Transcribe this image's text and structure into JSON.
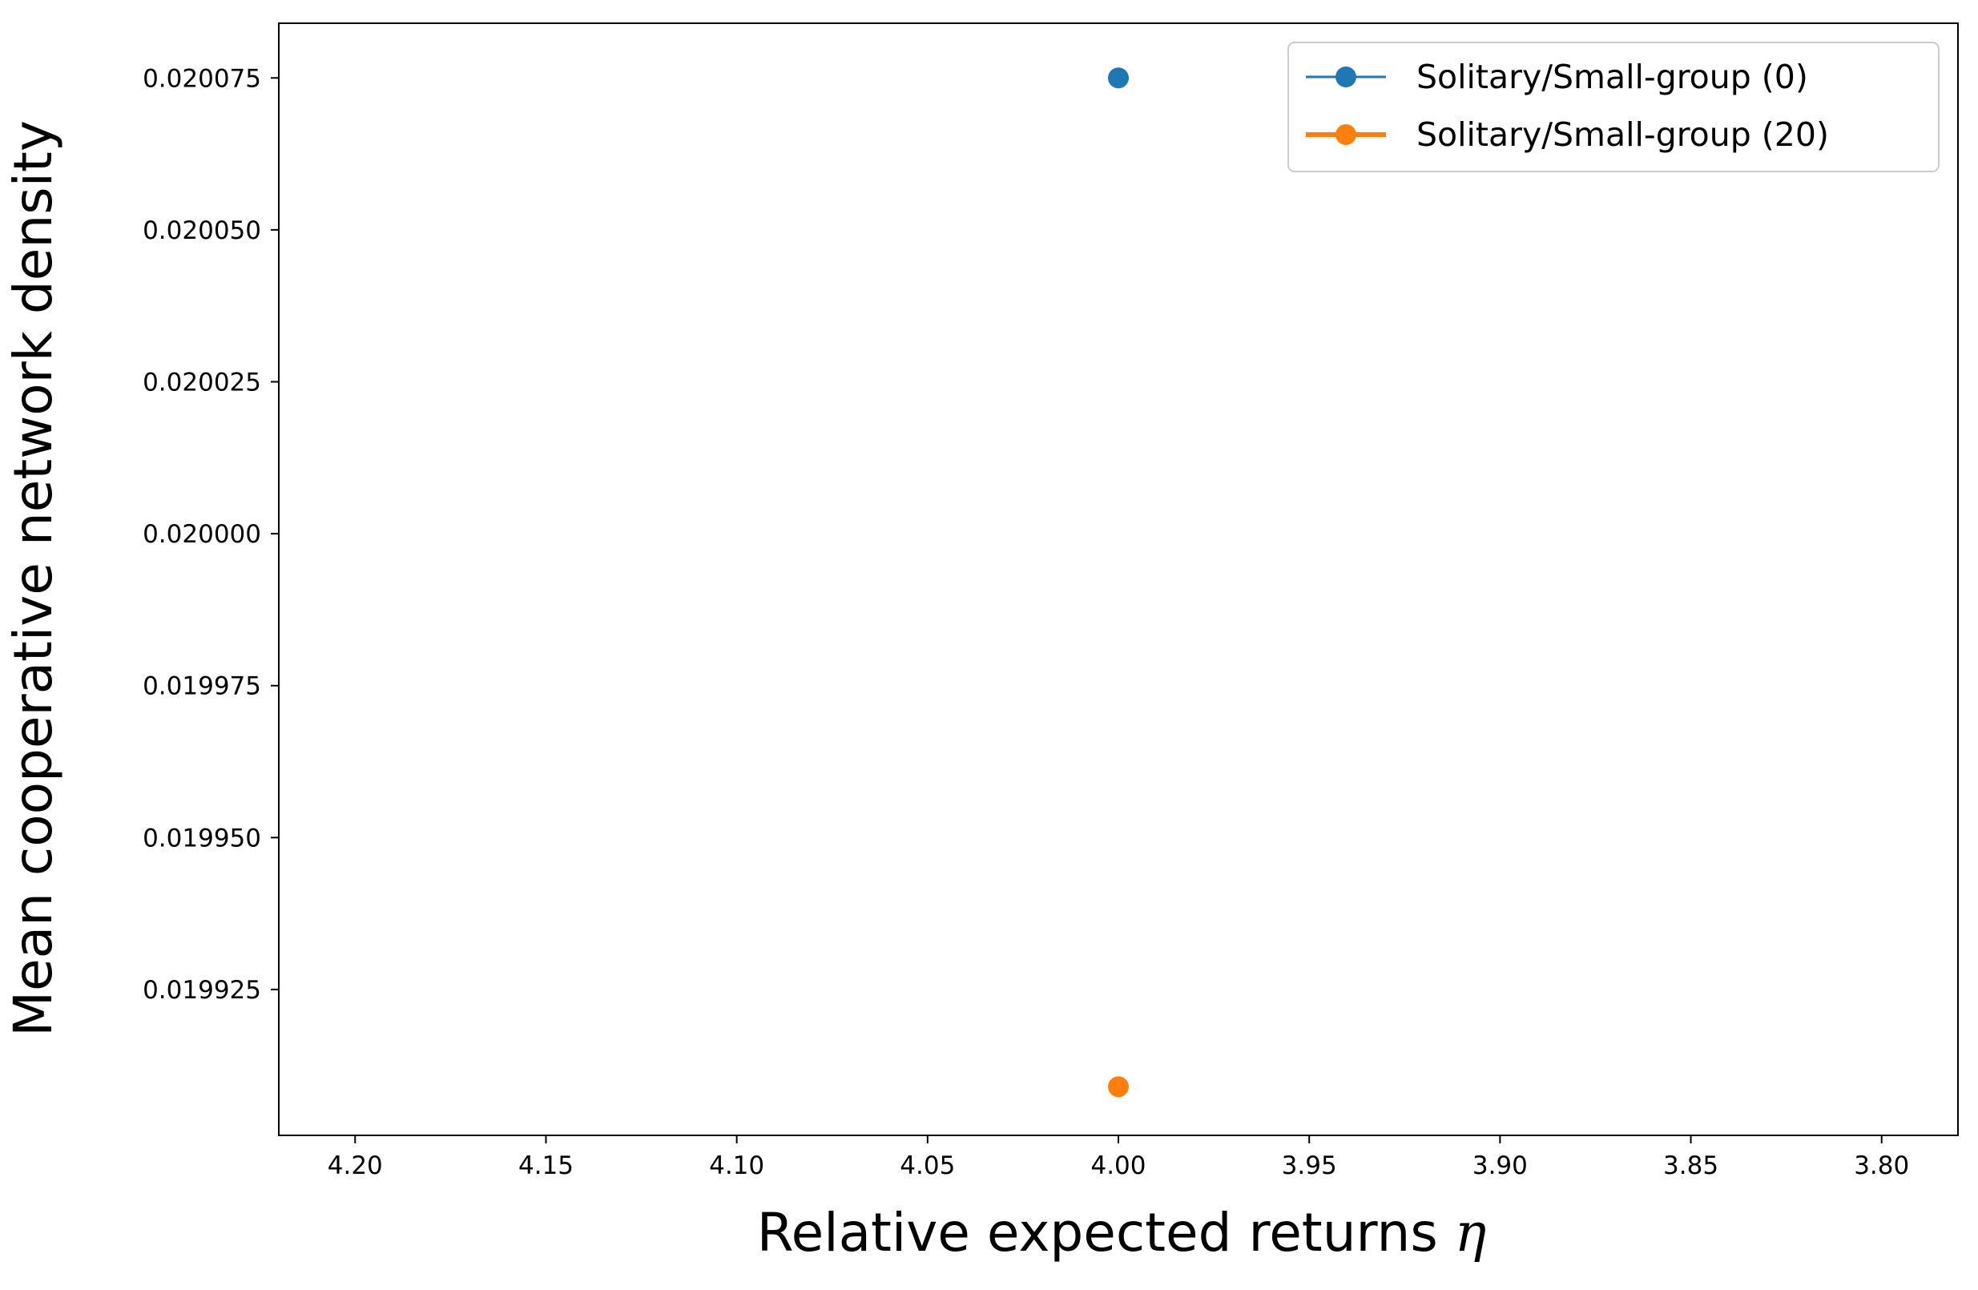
{
  "chart_data": {
    "type": "scatter",
    "xlabel": "Relative expected returns",
    "xlabel_symbol": "η",
    "ylabel": "Mean cooperative network density",
    "x_inverted": true,
    "xlim": [
      4.22,
      3.78
    ],
    "ylim": [
      0.019901,
      0.020084
    ],
    "x_ticks": [
      4.2,
      4.15,
      4.1,
      4.05,
      4.0,
      3.95,
      3.9,
      3.85,
      3.8
    ],
    "x_tick_labels": [
      "4.20",
      "4.15",
      "4.10",
      "4.05",
      "4.00",
      "3.95",
      "3.90",
      "3.85",
      "3.80"
    ],
    "y_ticks": [
      0.019925,
      0.01995,
      0.019975,
      0.02,
      0.020025,
      0.02005,
      0.020075
    ],
    "y_tick_labels": [
      "0.019925",
      "0.019950",
      "0.019975",
      "0.020000",
      "0.020025",
      "0.020050",
      "0.020075"
    ],
    "grid": false,
    "legend_position": "top-right",
    "series": [
      {
        "name": "Solitary/Small-group (0)",
        "color": "#1f77b4",
        "line": "thin",
        "x": [
          4.0
        ],
        "y": [
          0.020075
        ]
      },
      {
        "name": "Solitary/Small-group (20)",
        "color": "#ff7f0e",
        "line": "thick",
        "x": [
          4.0
        ],
        "y": [
          0.019909
        ]
      }
    ]
  }
}
